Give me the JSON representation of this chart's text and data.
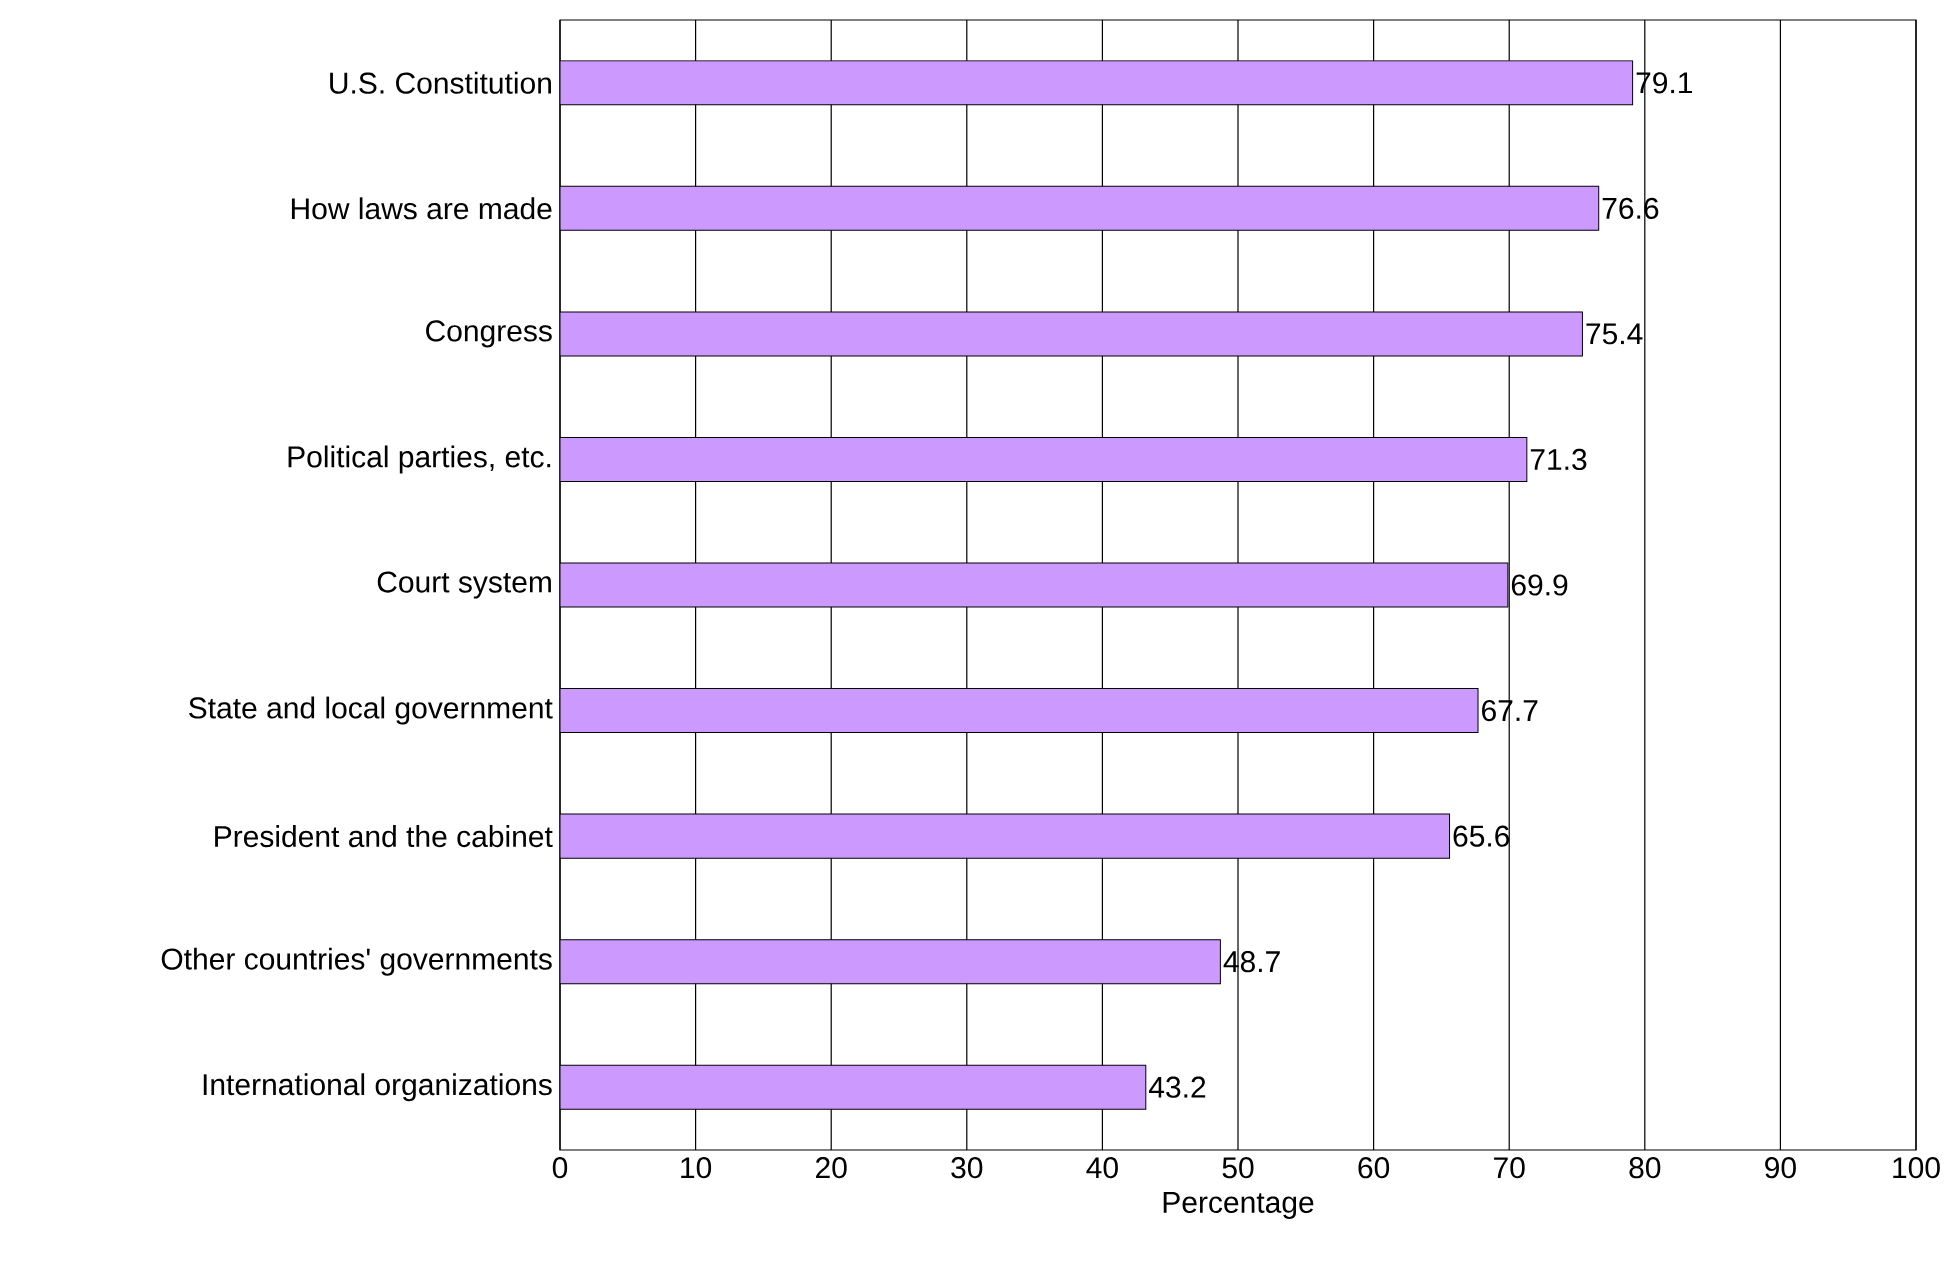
{
  "chart_data": {
    "type": "bar",
    "orientation": "horizontal",
    "xlabel": "Percentage",
    "categories": [
      "U.S. Constitution",
      "How laws are made",
      "Congress",
      "Political parties, etc.",
      "Court system",
      "State and local government",
      "President and the cabinet",
      "Other countries' governments",
      "International organizations"
    ],
    "values": [
      79.1,
      76.6,
      75.4,
      71.3,
      69.9,
      67.7,
      65.6,
      48.7,
      43.2
    ],
    "color": "#cc99ff",
    "xlim": [
      0,
      100
    ],
    "xticks": [
      0,
      10,
      20,
      30,
      40,
      50,
      60,
      70,
      80,
      90,
      100
    ],
    "grid": "x",
    "data_labels": true
  }
}
